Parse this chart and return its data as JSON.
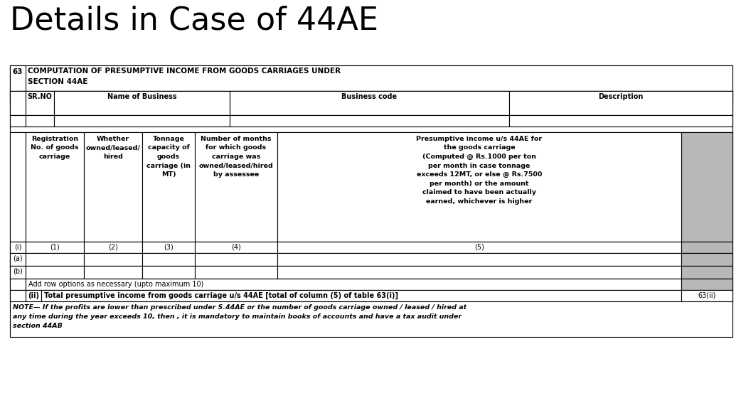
{
  "title": "Details in Case of 44AE",
  "title_fontsize": 32,
  "background_color": "#ffffff",
  "section_number": "63",
  "section_heading_line1": "COMPUTATION OF PRESUMPTIVE INCOME FROM GOODS CARRIAGES UNDER",
  "section_heading_line2": "SECTION 44AE",
  "srno_header": "SR.NO",
  "name_header": "Name of Business",
  "bcode_header": "Business code",
  "desc_header": "Description",
  "sub_headers": [
    "Registration\nNo. of goods\ncarriage",
    "Whether\nowned/leased/\nhired",
    "Tonnage\ncapacity of\ngoods\ncarriage (in\nMT)",
    "Number of months\nfor which goods\ncarriage was\nowned/leased/hired\nby assessee",
    "Presumptive income u/s 44AE for\nthe goods carriage\n(Computed @ Rs.1000 per ton\nper month in case tonnage\nexceeds 12MT, or else @ Rs.7500\nper month) or the amount\nclaimed to have been actually\nearned, whichever is higher"
  ],
  "col_num_row": [
    "(i)",
    "(1)",
    "(2)",
    "(3)",
    "(4)",
    "(5)"
  ],
  "data_row_labels": [
    "(a)",
    "(b)"
  ],
  "add_row_text": "Add row options as necessary (upto maximum 10)",
  "total_ii_label": "(ii)",
  "total_text": "Total presumptive income from goods carriage u/s 44AE [total of column (5) of table 63(i)]",
  "total_ref": "63(ii)",
  "note_text": "NOTE— If the profits are lower than prescribed under S.44AE or the number of goods carriage owned / leased / hired at\nany time during the year exceeds 10, then , it is mandatory to maintain books of accounts and have a tax audit under\nsection 44AB",
  "gray_color": "#b8b8b8",
  "border_color": "#000000",
  "lw": 0.8
}
